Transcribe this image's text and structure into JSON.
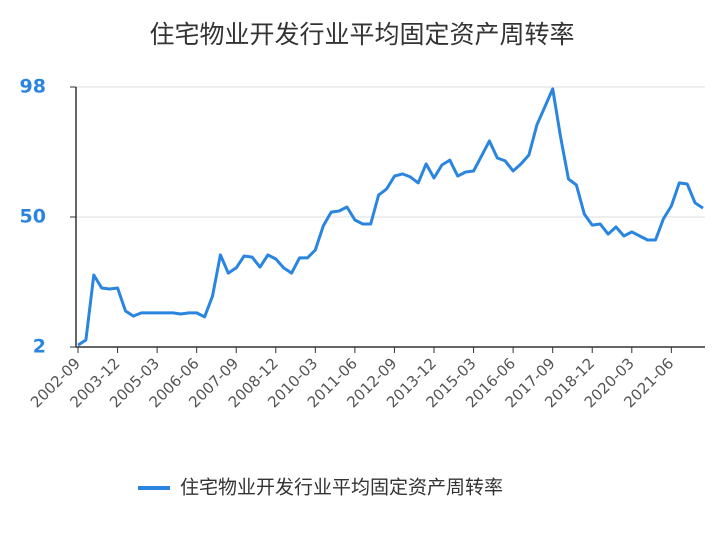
{
  "chart_data": {
    "type": "line",
    "title": "住宅物业开发行业平均固定资产周转率",
    "categories": [
      "2002-09",
      null,
      null,
      null,
      null,
      "2003-12",
      null,
      null,
      null,
      null,
      "2005-03",
      null,
      null,
      null,
      null,
      "2006-06",
      null,
      null,
      null,
      null,
      "2007-09",
      null,
      null,
      null,
      null,
      "2008-12",
      null,
      null,
      null,
      null,
      "2010-03",
      null,
      null,
      null,
      null,
      "2011-06",
      null,
      null,
      null,
      null,
      "2012-09",
      null,
      null,
      null,
      null,
      "2013-12",
      null,
      null,
      null,
      null,
      "2015-03",
      null,
      null,
      null,
      null,
      "2016-06",
      null,
      null,
      null,
      null,
      "2017-09",
      null,
      null,
      null,
      null,
      "2018-12",
      null,
      null,
      null,
      null,
      "2020-03",
      null,
      null,
      null,
      null,
      "2021-06",
      null,
      null,
      null,
      null
    ],
    "series": [
      {
        "name": "住宅物业开发行业平均固定资产周转率",
        "color": "#2a85e0",
        "values": [
          2.7,
          4.6,
          28.6,
          23.8,
          23.4,
          23.8,
          15.3,
          13.4,
          14.6,
          14.6,
          14.6,
          14.6,
          14.6,
          14.2,
          14.6,
          14.6,
          13.1,
          20.8,
          36,
          29.3,
          31.2,
          35.6,
          35.2,
          31.5,
          36,
          34.5,
          31.2,
          29.3,
          34.9,
          34.9,
          37.8,
          46.7,
          51.8,
          52.2,
          53.7,
          48.9,
          47.4,
          47.4,
          58.1,
          60.3,
          65.1,
          65.9,
          64.8,
          62.6,
          69.6,
          64.4,
          69.2,
          71,
          65.1,
          66.6,
          67,
          72.5,
          78.1,
          71.8,
          70.7,
          67,
          69.6,
          72.9,
          84,
          90.6,
          97.3,
          79.5,
          64,
          61.8,
          51.1,
          47,
          47.4,
          43.7,
          46.3,
          43,
          44.5,
          43,
          41.5,
          41.5,
          49.3,
          54.1,
          62.6,
          62.2,
          55.2,
          53.3
        ]
      }
    ],
    "ylim": [
      2,
      98
    ],
    "yticks": [
      2,
      50,
      98
    ],
    "grid": true,
    "legend": "bottom"
  }
}
